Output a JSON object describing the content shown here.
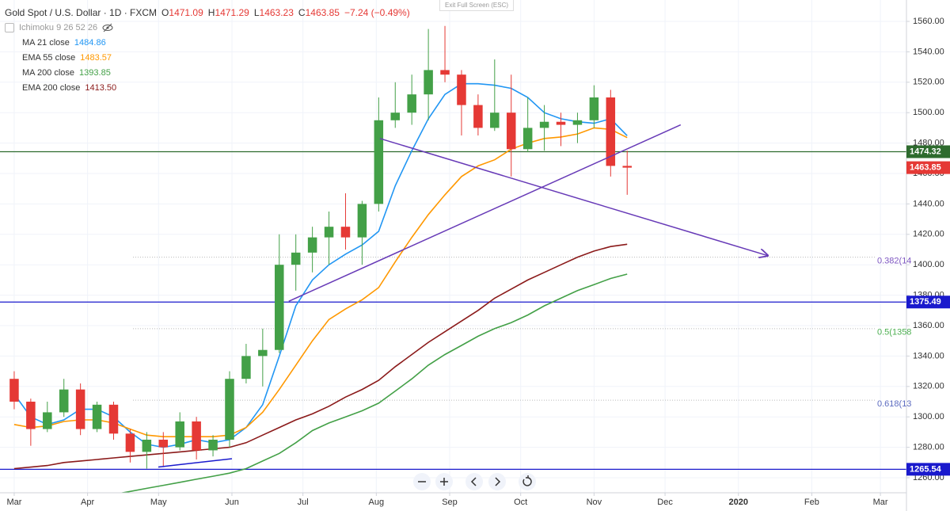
{
  "header": {
    "symbol": "Gold Spot / U.S. Dollar · 1D · FXCM",
    "ohlc": [
      {
        "prefix": "O",
        "value": 1471.09
      },
      {
        "prefix": "H",
        "value": 1471.29
      },
      {
        "prefix": "L",
        "value": 1463.23
      },
      {
        "prefix": "C",
        "value": 1463.85
      }
    ],
    "change": "−7.24 (−0.49%)",
    "ichimoku": "Ichimoku 9 26 52 26",
    "exit_button": "Exit Full Screen (ESC)"
  },
  "chart_data": {
    "type": "candlestick",
    "x": [
      0,
      7,
      14,
      21,
      28,
      35,
      42,
      49,
      56,
      63,
      70,
      77,
      84,
      91,
      98,
      105,
      112,
      119,
      126,
      133,
      140,
      147,
      154,
      161,
      168,
      175,
      182,
      189,
      196,
      203,
      210,
      217,
      224,
      231,
      238,
      245,
      252,
      259
    ],
    "open": [
      1325,
      1310,
      1292,
      1303,
      1318,
      1292,
      1308,
      1289,
      1277,
      1285,
      1280,
      1297,
      1278,
      1285,
      1325,
      1340,
      1344,
      1400,
      1408,
      1418,
      1425,
      1418,
      1440,
      1495,
      1500,
      1512,
      1528,
      1525,
      1505,
      1490,
      1500,
      1476,
      1490,
      1494,
      1492,
      1495,
      1510,
      1465
    ],
    "high": [
      1330,
      1312,
      1310,
      1325,
      1322,
      1310,
      1310,
      1292,
      1290,
      1290,
      1303,
      1300,
      1288,
      1330,
      1348,
      1358,
      1420,
      1420,
      1425,
      1435,
      1447,
      1442,
      1510,
      1520,
      1525,
      1555,
      1557,
      1528,
      1512,
      1535,
      1525,
      1510,
      1505,
      1500,
      1500,
      1518,
      1515,
      1475
    ],
    "low": [
      1305,
      1281,
      1290,
      1300,
      1288,
      1290,
      1285,
      1270,
      1266,
      1267,
      1278,
      1272,
      1274,
      1280,
      1322,
      1320,
      1342,
      1383,
      1395,
      1400,
      1410,
      1400,
      1435,
      1490,
      1492,
      1495,
      1520,
      1485,
      1485,
      1488,
      1458,
      1474,
      1475,
      1478,
      1480,
      1490,
      1458,
      1446
    ],
    "close": [
      1310,
      1292,
      1303,
      1318,
      1292,
      1308,
      1289,
      1277,
      1285,
      1280,
      1297,
      1278,
      1285,
      1325,
      1340,
      1344,
      1400,
      1408,
      1418,
      1425,
      1418,
      1440,
      1495,
      1500,
      1512,
      1528,
      1525,
      1505,
      1490,
      1500,
      1476,
      1490,
      1494,
      1492,
      1495,
      1510,
      1465,
      1463.85
    ],
    "up_color": "#43a047",
    "down_color": "#e53935",
    "series": [
      {
        "name": "MA 21 close",
        "last_label": "1484.86",
        "color": "#2196f3",
        "values": [
          1315,
          1300,
          1295,
          1298,
          1305,
          1305,
          1300,
          1290,
          1282,
          1280,
          1282,
          1285,
          1283,
          1285,
          1293,
          1308,
          1340,
          1373,
          1390,
          1400,
          1407,
          1413,
          1422,
          1452,
          1475,
          1496,
          1512,
          1519,
          1519,
          1518,
          1516,
          1510,
          1500,
          1496,
          1494,
          1493,
          1496,
          1484.86
        ]
      },
      {
        "name": "EMA 55 close",
        "last_label": "1483.57",
        "color": "#ff9800",
        "values": [
          1295,
          1293,
          1294,
          1297,
          1298,
          1298,
          1296,
          1292,
          1288,
          1287,
          1287,
          1287,
          1287,
          1288,
          1293,
          1303,
          1318,
          1334,
          1350,
          1364,
          1371,
          1377,
          1385,
          1402,
          1418,
          1433,
          1446,
          1458,
          1465,
          1469,
          1476,
          1480,
          1483,
          1484,
          1486,
          1490,
          1489,
          1483.57
        ]
      },
      {
        "name": "MA 200 close",
        "last_label": "1393.85",
        "color": "#43a047",
        "values": [
          null,
          null,
          null,
          null,
          null,
          null,
          1249,
          1251,
          1253,
          1255,
          1257,
          1259,
          1261,
          1263,
          1266,
          1271,
          1276,
          1283,
          1291,
          1296,
          1300,
          1304,
          1309,
          1317,
          1325,
          1334,
          1341,
          1347,
          1353,
          1358,
          1362,
          1367,
          1373,
          1378,
          1383,
          1387,
          1391,
          1393.85
        ]
      },
      {
        "name": "EMA 200 close",
        "last_label": "1413.50",
        "color": "#8b1a1a",
        "values": [
          1266,
          1267,
          1268,
          1270,
          1271,
          1272,
          1273,
          1274,
          1275,
          1276,
          1277,
          1278,
          1279,
          1280,
          1283,
          1288,
          1293,
          1298,
          1302,
          1307,
          1313,
          1318,
          1324,
          1333,
          1341,
          1349,
          1356,
          1363,
          1370,
          1378,
          1384,
          1390,
          1395,
          1400,
          1405,
          1409,
          1412,
          1413.5
        ]
      }
    ],
    "xlim": [
      -6,
      377
    ],
    "xticks": [
      {
        "value": 0,
        "label": "Mar"
      },
      {
        "value": 31,
        "label": "Apr"
      },
      {
        "value": 61,
        "label": "May"
      },
      {
        "value": 92,
        "label": "Jun"
      },
      {
        "value": 122,
        "label": "Jul"
      },
      {
        "value": 153,
        "label": "Aug"
      },
      {
        "value": 184,
        "label": "Sep"
      },
      {
        "value": 214,
        "label": "Oct"
      },
      {
        "value": 245,
        "label": "Nov"
      },
      {
        "value": 275,
        "label": "Dec"
      },
      {
        "value": 306,
        "label": "2020"
      },
      {
        "value": 337,
        "label": "Feb"
      },
      {
        "value": 366,
        "label": "Mar"
      }
    ],
    "ylim": [
      1250.1,
      1574.06
    ],
    "yticks": [
      {
        "value": 1260,
        "label": "1260.00"
      },
      {
        "value": 1280,
        "label": "1280.00"
      },
      {
        "value": 1300,
        "label": "1300.00"
      },
      {
        "value": 1320,
        "label": "1320.00"
      },
      {
        "value": 1340,
        "label": "1340.00"
      },
      {
        "value": 1360,
        "label": "1360.00"
      },
      {
        "value": 1380,
        "label": "1380.00"
      },
      {
        "value": 1400,
        "label": "1400.00"
      },
      {
        "value": 1420,
        "label": "1420.00"
      },
      {
        "value": 1440,
        "label": "1440.00"
      },
      {
        "value": 1460,
        "label": "1460.00"
      },
      {
        "value": 1480,
        "label": "1480.00"
      },
      {
        "value": 1500,
        "label": "1500.00"
      },
      {
        "value": 1520,
        "label": "1520.00"
      },
      {
        "value": 1540,
        "label": "1540.00"
      },
      {
        "value": 1560,
        "label": "1560.00"
      }
    ],
    "grid": true,
    "levels": [
      {
        "value": 1474.32,
        "color": "#2e6b2e"
      },
      {
        "value": 1375.49,
        "color": "#1a1acd"
      },
      {
        "value": 1265.54,
        "color": "#1a1acd"
      }
    ],
    "fib_levels": [
      {
        "value": 1405,
        "label": "0.382(14",
        "color": "#7e57c2"
      },
      {
        "value": 1358,
        "label": "0.5(1358",
        "color": "#4caf50"
      },
      {
        "value": 1311,
        "label": "0.618(13",
        "color": "#5c6bc0"
      }
    ],
    "trendlines": [
      {
        "x": [
          154.5,
          318.4
        ],
        "y": [
          1483,
          1406
        ],
        "color": "#673ab7",
        "arrow": true
      },
      {
        "x": [
          116,
          281.6
        ],
        "y": [
          1376,
          1492
        ],
        "color": "#673ab7",
        "arrow": false
      },
      {
        "x": [
          60.9,
          92
        ],
        "y": [
          1267,
          1272.5
        ],
        "color": "#1a1acd",
        "arrow": false
      }
    ]
  }
}
